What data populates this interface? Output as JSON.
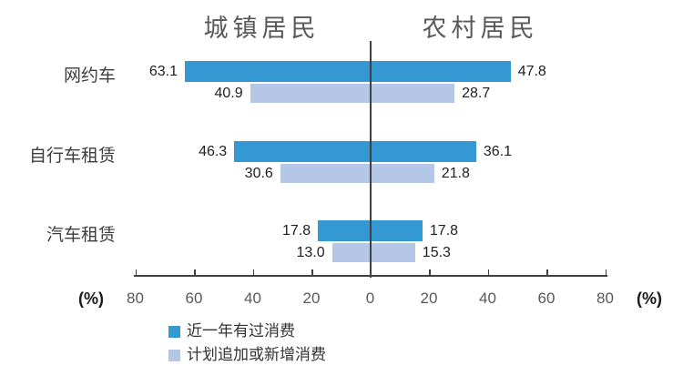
{
  "chart_data": {
    "type": "bar",
    "subtype": "bidirectional-horizontal-tornado",
    "title": "",
    "panel_headers": [
      "城镇居民",
      "农村居民"
    ],
    "categories": [
      "网约车",
      "自行车租赁",
      "汽车租赁"
    ],
    "series": [
      {
        "name": "近一年有过消费",
        "color": "#3498d2",
        "values": {
          "urban": [
            "63.1",
            "46.3",
            "17.8"
          ],
          "rural": [
            "47.8",
            "36.1",
            "17.8"
          ]
        }
      },
      {
        "name": "计划追加或新增消费",
        "color": "#b4c7e7",
        "values": {
          "urban": [
            "40.9",
            "30.6",
            "13.0"
          ],
          "rural": [
            "28.7",
            "21.8",
            "15.3"
          ]
        }
      }
    ],
    "axis": {
      "unit_label": "(%)",
      "tick_labels": [
        "80",
        "60",
        "40",
        "20",
        "0",
        "20",
        "40",
        "60",
        "80"
      ],
      "tick_step": 20,
      "max": 80,
      "zero_line": true
    },
    "legend_position": "bottom-left",
    "colors": {
      "axis_line": "#404040",
      "tick_text": "#595959",
      "header_text": "#595959",
      "category_text": "#3d3d3d",
      "value_text": "#1f1f1f"
    }
  }
}
